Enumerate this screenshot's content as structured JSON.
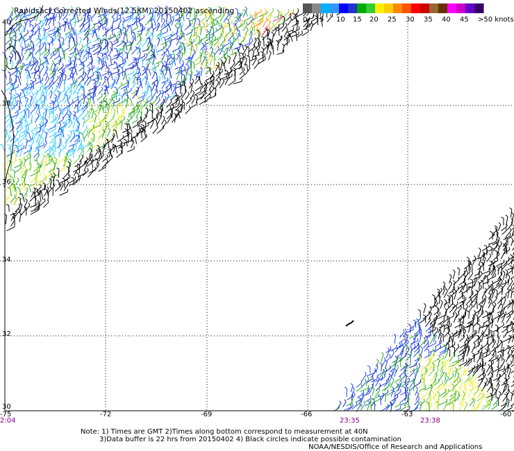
{
  "title": "Rapidsact Corrected Winds(12.5KM) 20150402 ascending",
  "legend": {
    "colors": [
      "#555555",
      "#888888",
      "#00b0ff",
      "#3399ff",
      "#0000ff",
      "#2233cc",
      "#00aa00",
      "#33cc33",
      "#ffee00",
      "#ffcc00",
      "#ff8800",
      "#ff5500",
      "#ff0000",
      "#cc0000",
      "#996633",
      "#663300",
      "#ff00ff",
      "#cc00cc",
      "#6600cc",
      "#330066"
    ],
    "labels": [
      "0",
      "5",
      "10",
      "15",
      "20",
      "25",
      "30",
      "35",
      "40",
      "45",
      ">50 knots"
    ]
  },
  "axes": {
    "lat_labels": [
      "40",
      "38",
      "36",
      "34",
      "32",
      "30"
    ],
    "lon_labels": [
      "-75",
      "-72",
      "-69",
      "-66",
      "-63",
      "-60"
    ]
  },
  "times": {
    "left": "2:04",
    "mid": "23:35",
    "right": "23:38"
  },
  "notes": {
    "line1": "Note: 1) Times are GMT 2)Times along bottom correspond to measurement at 40N",
    "line2": "3)Data buffer is 22 hrs from 20150402 4) Black circles indicate possible contamination",
    "credit": "NOAA/NESDIS/Office of Research and Applications"
  },
  "style": {
    "grid_color": "#000000",
    "time_color": "#880088"
  }
}
